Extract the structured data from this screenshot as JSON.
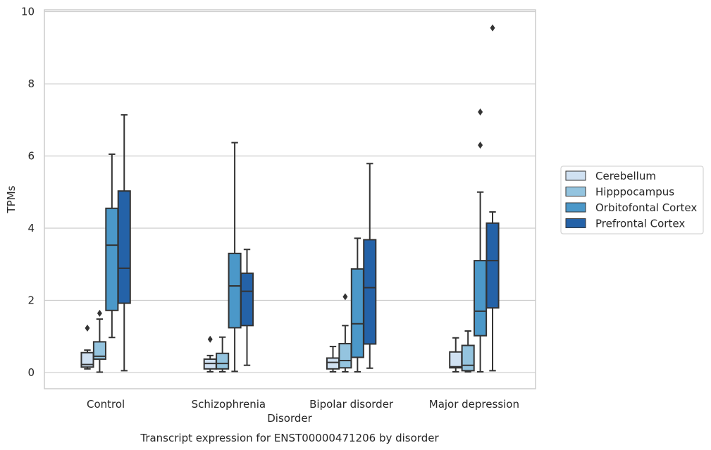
{
  "chart_data": {
    "type": "box",
    "xlabel": "Disorder",
    "ylabel": "TPMs",
    "caption": "Transcript expression for ENST00000471206 by disorder",
    "ylim": [
      -0.45,
      10.05
    ],
    "yticks": [
      "0",
      "2",
      "4",
      "6",
      "8",
      "10"
    ],
    "ytick_values": [
      0,
      2,
      4,
      6,
      8,
      10
    ],
    "grid": "horizontal",
    "legend_position": "right",
    "categories": [
      "Control",
      "Schizophrenia",
      "Bipolar disorder",
      "Major depression"
    ],
    "series": [
      {
        "name": "Cerebellum",
        "color": "#d0e1f2",
        "boxes": [
          {
            "whisker_low": 0.1,
            "q1": 0.15,
            "median": 0.22,
            "q3": 0.55,
            "whisker_high": 0.62,
            "outliers": [
              1.23
            ]
          },
          {
            "whisker_low": 0.02,
            "q1": 0.1,
            "median": 0.25,
            "q3": 0.37,
            "whisker_high": 0.47,
            "outliers": [
              0.92
            ]
          },
          {
            "whisker_low": 0.02,
            "q1": 0.1,
            "median": 0.28,
            "q3": 0.4,
            "whisker_high": 0.72,
            "outliers": []
          },
          {
            "whisker_low": 0.02,
            "q1": 0.13,
            "median": 0.16,
            "q3": 0.57,
            "whisker_high": 0.96,
            "outliers": []
          }
        ]
      },
      {
        "name": "Hipppocampus",
        "color": "#94c4df",
        "boxes": [
          {
            "whisker_low": 0.01,
            "q1": 0.37,
            "median": 0.45,
            "q3": 0.85,
            "whisker_high": 1.48,
            "outliers": [
              1.64
            ]
          },
          {
            "whisker_low": 0.02,
            "q1": 0.1,
            "median": 0.25,
            "q3": 0.53,
            "whisker_high": 0.98,
            "outliers": []
          },
          {
            "whisker_low": 0.02,
            "q1": 0.13,
            "median": 0.33,
            "q3": 0.8,
            "whisker_high": 1.3,
            "outliers": [
              2.1
            ]
          },
          {
            "whisker_low": 0.02,
            "q1": 0.05,
            "median": 0.2,
            "q3": 0.75,
            "whisker_high": 1.15,
            "outliers": []
          }
        ]
      },
      {
        "name": "Orbitofontal Cortex",
        "color": "#4b98c9",
        "boxes": [
          {
            "whisker_low": 0.97,
            "q1": 1.72,
            "median": 3.53,
            "q3": 4.55,
            "whisker_high": 6.05,
            "outliers": []
          },
          {
            "whisker_low": 0.03,
            "q1": 1.24,
            "median": 2.4,
            "q3": 3.3,
            "whisker_high": 6.37,
            "outliers": []
          },
          {
            "whisker_low": 0.02,
            "q1": 0.42,
            "median": 1.35,
            "q3": 2.87,
            "whisker_high": 3.72,
            "outliers": []
          },
          {
            "whisker_low": 0.02,
            "q1": 1.02,
            "median": 1.7,
            "q3": 3.1,
            "whisker_high": 5.0,
            "outliers": [
              6.3,
              7.22
            ]
          }
        ]
      },
      {
        "name": "Prefrontal Cortex",
        "color": "#2462a8",
        "boxes": [
          {
            "whisker_low": 0.05,
            "q1": 1.92,
            "median": 2.89,
            "q3": 5.03,
            "whisker_high": 7.14,
            "outliers": []
          },
          {
            "whisker_low": 0.2,
            "q1": 1.3,
            "median": 2.25,
            "q3": 2.75,
            "whisker_high": 3.41,
            "outliers": []
          },
          {
            "whisker_low": 0.12,
            "q1": 0.79,
            "median": 2.35,
            "q3": 3.68,
            "whisker_high": 5.79,
            "outliers": []
          },
          {
            "whisker_low": 0.05,
            "q1": 1.79,
            "median": 3.1,
            "q3": 4.14,
            "whisker_high": 4.45,
            "outliers": [
              9.55
            ]
          }
        ]
      }
    ]
  }
}
